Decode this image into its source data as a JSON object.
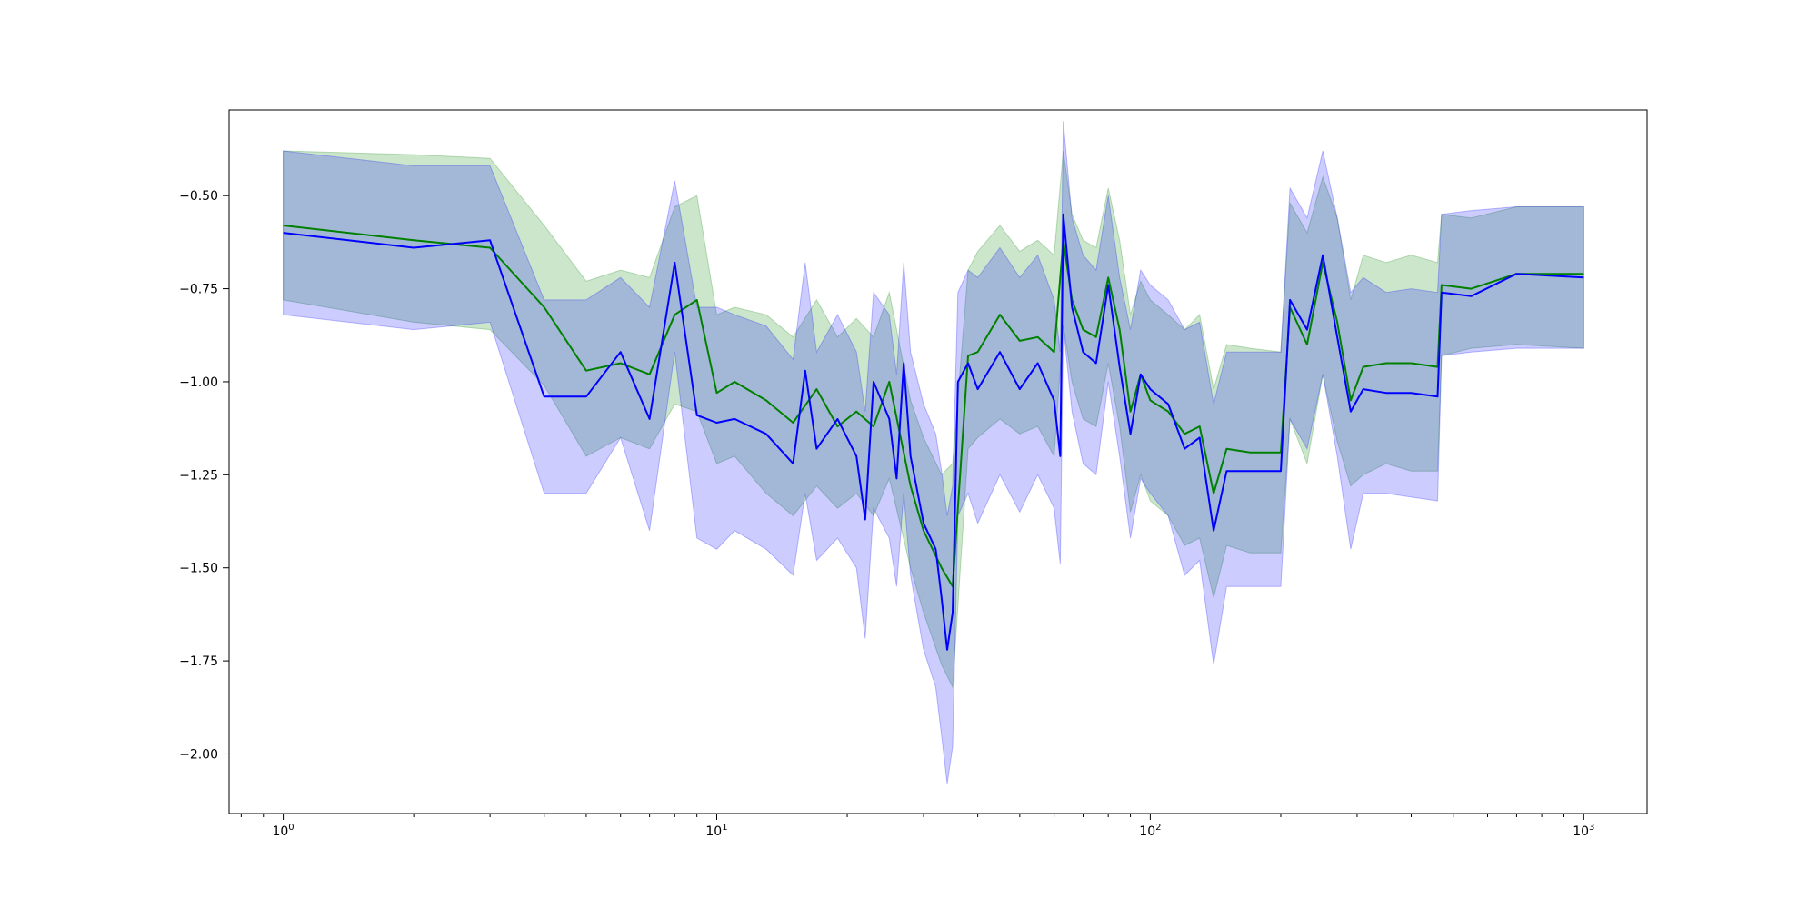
{
  "chart_data": {
    "type": "line",
    "title": "",
    "xlabel": "",
    "ylabel": "",
    "xscale": "log",
    "xlim": [
      0.75,
      1400
    ],
    "ylim": [
      -2.16,
      -0.27
    ],
    "grid": false,
    "legend": "none",
    "x_ticks": [
      {
        "value": 1,
        "base": "10",
        "exp": "0"
      },
      {
        "value": 10,
        "base": "10",
        "exp": "1"
      },
      {
        "value": 100,
        "base": "10",
        "exp": "2"
      },
      {
        "value": 1000,
        "base": "10",
        "exp": "3"
      }
    ],
    "y_ticks": [
      {
        "value": -0.5,
        "label": "−0.50"
      },
      {
        "value": -0.75,
        "label": "−0.75"
      },
      {
        "value": -1.0,
        "label": "−1.00"
      },
      {
        "value": -1.25,
        "label": "−1.25"
      },
      {
        "value": -1.5,
        "label": "−1.50"
      },
      {
        "value": -1.75,
        "label": "−1.75"
      },
      {
        "value": -2.0,
        "label": "−2.00"
      }
    ],
    "series": [
      {
        "color": "#008000",
        "band_color": "#008000",
        "x": [
          1,
          2,
          3,
          4,
          5,
          6,
          7,
          8,
          9,
          10,
          11,
          13,
          15,
          17,
          19,
          21,
          23,
          25,
          28,
          30,
          33,
          35,
          38,
          40,
          45,
          50,
          55,
          60,
          63,
          66,
          70,
          75,
          80,
          85,
          90,
          95,
          100,
          110,
          120,
          130,
          140,
          150,
          170,
          200,
          210,
          230,
          250,
          270,
          290,
          310,
          350,
          400,
          460,
          470,
          550,
          700,
          1000
        ],
        "y": [
          -0.58,
          -0.62,
          -0.64,
          -0.8,
          -0.97,
          -0.95,
          -0.98,
          -0.82,
          -0.78,
          -1.03,
          -1.0,
          -1.05,
          -1.11,
          -1.02,
          -1.12,
          -1.08,
          -1.12,
          -1.0,
          -1.28,
          -1.4,
          -1.5,
          -1.55,
          -0.93,
          -0.92,
          -0.82,
          -0.89,
          -0.88,
          -0.92,
          -0.62,
          -0.78,
          -0.86,
          -0.88,
          -0.72,
          -0.86,
          -1.08,
          -0.98,
          -1.05,
          -1.08,
          -1.14,
          -1.12,
          -1.3,
          -1.18,
          -1.19,
          -1.19,
          -0.8,
          -0.9,
          -0.68,
          -0.84,
          -1.05,
          -0.96,
          -0.95,
          -0.95,
          -0.96,
          -0.74,
          -0.75,
          -0.71,
          -0.71
        ],
        "lower": [
          -0.78,
          -0.84,
          -0.86,
          -1.01,
          -1.2,
          -1.15,
          -1.18,
          -1.06,
          -1.08,
          -1.22,
          -1.2,
          -1.3,
          -1.36,
          -1.28,
          -1.34,
          -1.3,
          -1.36,
          -1.26,
          -1.5,
          -1.62,
          -1.76,
          -1.82,
          -1.18,
          -1.15,
          -1.1,
          -1.14,
          -1.12,
          -1.2,
          -0.85,
          -1.0,
          -1.1,
          -1.12,
          -0.95,
          -1.12,
          -1.35,
          -1.25,
          -1.32,
          -1.36,
          -1.44,
          -1.42,
          -1.58,
          -1.44,
          -1.46,
          -1.46,
          -1.1,
          -1.22,
          -0.98,
          -1.16,
          -1.28,
          -1.25,
          -1.22,
          -1.24,
          -1.24,
          -0.93,
          -0.91,
          -0.9,
          -0.91
        ],
        "upper": [
          -0.38,
          -0.39,
          -0.4,
          -0.58,
          -0.73,
          -0.7,
          -0.72,
          -0.53,
          -0.5,
          -0.82,
          -0.8,
          -0.82,
          -0.88,
          -0.78,
          -0.88,
          -0.83,
          -0.88,
          -0.76,
          -1.05,
          -1.15,
          -1.25,
          -1.22,
          -0.7,
          -0.65,
          -0.58,
          -0.65,
          -0.62,
          -0.66,
          -0.38,
          -0.55,
          -0.62,
          -0.64,
          -0.48,
          -0.62,
          -0.82,
          -0.73,
          -0.78,
          -0.82,
          -0.86,
          -0.82,
          -1.02,
          -0.9,
          -0.91,
          -0.92,
          -0.52,
          -0.6,
          -0.45,
          -0.56,
          -0.78,
          -0.66,
          -0.68,
          -0.66,
          -0.68,
          -0.55,
          -0.56,
          -0.53,
          -0.53
        ]
      },
      {
        "color": "#0000ff",
        "band_color": "#0000ff",
        "x": [
          1,
          2,
          3,
          4,
          5,
          6,
          7,
          8,
          9,
          10,
          11,
          13,
          15,
          16,
          17,
          19,
          21,
          22,
          23,
          25,
          26,
          27,
          28,
          30,
          32,
          33,
          34,
          35,
          36,
          38,
          40,
          45,
          50,
          55,
          60,
          62,
          63,
          66,
          70,
          75,
          80,
          85,
          90,
          95,
          100,
          110,
          120,
          130,
          140,
          150,
          170,
          200,
          210,
          230,
          250,
          270,
          290,
          310,
          350,
          400,
          460,
          470,
          550,
          700,
          1000
        ],
        "y": [
          -0.6,
          -0.64,
          -0.62,
          -1.04,
          -1.04,
          -0.92,
          -1.1,
          -0.68,
          -1.09,
          -1.11,
          -1.1,
          -1.14,
          -1.22,
          -0.97,
          -1.18,
          -1.1,
          -1.2,
          -1.37,
          -1.0,
          -1.1,
          -1.26,
          -0.95,
          -1.2,
          -1.38,
          -1.45,
          -1.58,
          -1.72,
          -1.62,
          -1.0,
          -0.95,
          -1.02,
          -0.92,
          -1.02,
          -0.95,
          -1.05,
          -1.2,
          -0.55,
          -0.8,
          -0.92,
          -0.95,
          -0.74,
          -0.96,
          -1.14,
          -0.98,
          -1.02,
          -1.06,
          -1.18,
          -1.15,
          -1.4,
          -1.24,
          -1.24,
          -1.24,
          -0.78,
          -0.86,
          -0.66,
          -0.88,
          -1.08,
          -1.02,
          -1.03,
          -1.03,
          -1.04,
          -0.76,
          -0.77,
          -0.71,
          -0.72
        ],
        "lower": [
          -0.82,
          -0.86,
          -0.84,
          -1.3,
          -1.3,
          -1.15,
          -1.4,
          -0.92,
          -1.42,
          -1.45,
          -1.4,
          -1.45,
          -1.52,
          -1.3,
          -1.48,
          -1.42,
          -1.5,
          -1.69,
          -1.34,
          -1.42,
          -1.55,
          -1.3,
          -1.52,
          -1.72,
          -1.82,
          -1.95,
          -2.08,
          -1.98,
          -1.36,
          -1.3,
          -1.38,
          -1.25,
          -1.35,
          -1.25,
          -1.34,
          -1.49,
          -0.85,
          -1.08,
          -1.22,
          -1.25,
          -1.0,
          -1.2,
          -1.42,
          -1.26,
          -1.3,
          -1.36,
          -1.52,
          -1.48,
          -1.76,
          -1.55,
          -1.55,
          -1.55,
          -1.1,
          -1.18,
          -0.98,
          -1.2,
          -1.45,
          -1.3,
          -1.3,
          -1.31,
          -1.32,
          -0.93,
          -0.92,
          -0.91,
          -0.91
        ],
        "upper": [
          -0.38,
          -0.42,
          -0.42,
          -0.78,
          -0.78,
          -0.72,
          -0.8,
          -0.46,
          -0.8,
          -0.8,
          -0.82,
          -0.85,
          -0.94,
          -0.68,
          -0.92,
          -0.82,
          -0.92,
          -1.08,
          -0.76,
          -0.82,
          -0.98,
          -0.68,
          -0.92,
          -1.06,
          -1.14,
          -1.24,
          -1.36,
          -1.28,
          -0.76,
          -0.7,
          -0.72,
          -0.64,
          -0.72,
          -0.66,
          -0.78,
          -0.92,
          -0.3,
          -0.56,
          -0.66,
          -0.7,
          -0.5,
          -0.72,
          -0.86,
          -0.7,
          -0.74,
          -0.78,
          -0.86,
          -0.84,
          -1.06,
          -0.92,
          -0.92,
          -0.92,
          -0.48,
          -0.56,
          -0.38,
          -0.56,
          -0.76,
          -0.72,
          -0.76,
          -0.75,
          -0.76,
          -0.55,
          -0.54,
          -0.53,
          -0.53
        ]
      }
    ]
  }
}
